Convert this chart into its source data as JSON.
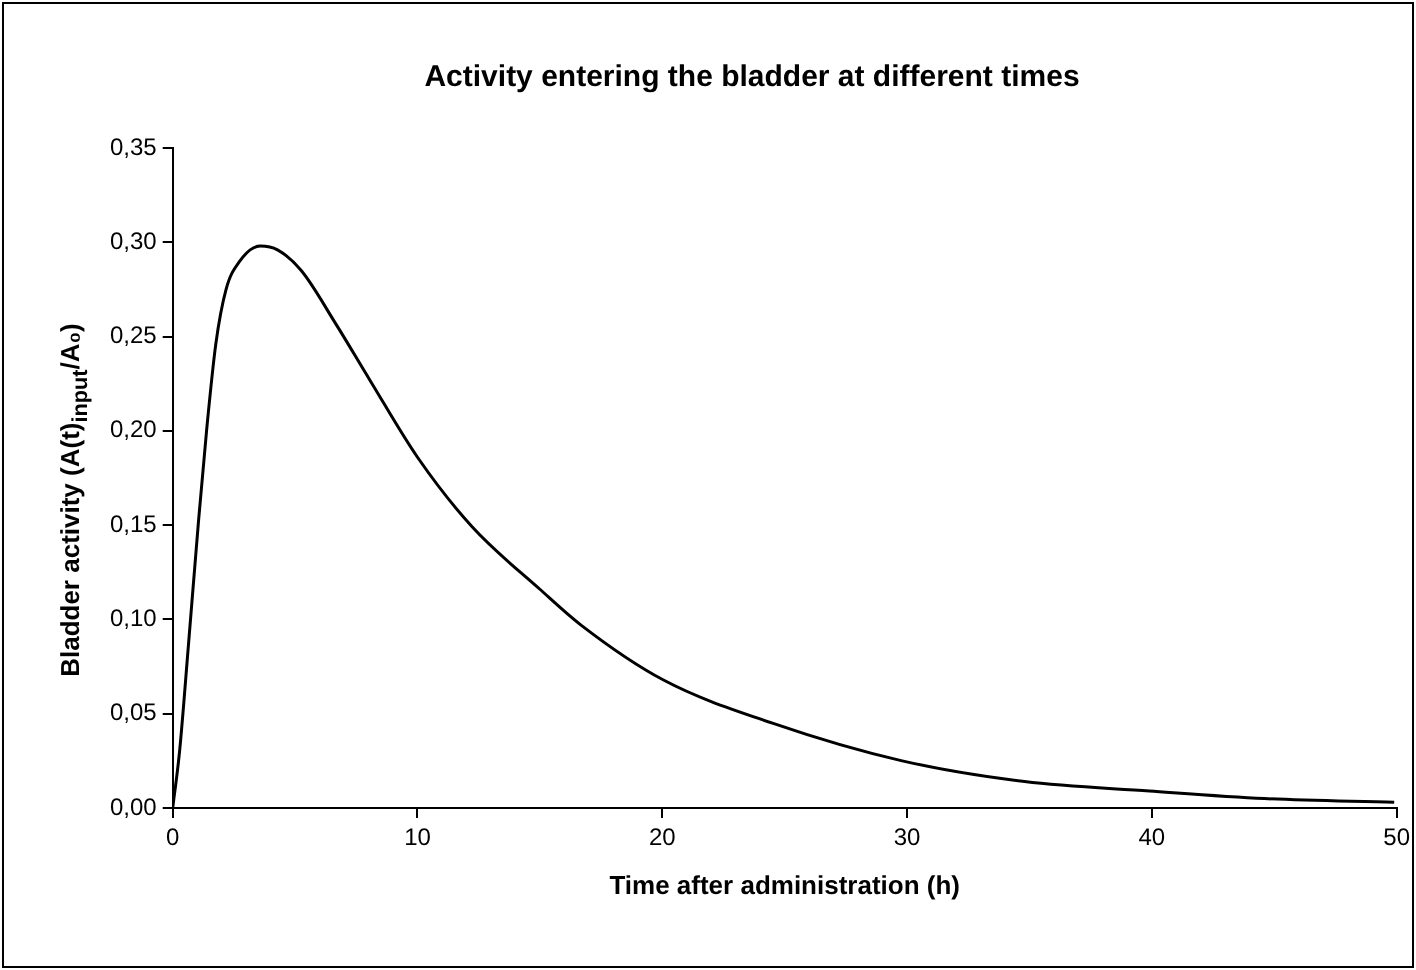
{
  "chart_data": {
    "type": "line",
    "title": "Activity entering the bladder at different times",
    "xlabel": "Time after administration (h)",
    "ylabel": "Bladder activity (A(t)$_{input}$/A₀)",
    "series": [
      {
        "color": "#000000",
        "x": [
          0,
          0.28,
          0.64,
          1.06,
          1.39,
          1.76,
          2.18,
          2.74,
          3.58,
          4.28,
          5.25,
          6.65,
          8.05,
          10,
          12.24,
          15,
          16.68,
          20.03,
          24.5,
          29.8,
          34.8,
          39.9,
          44.6,
          49.9
        ],
        "values": [
          0,
          0.03,
          0.086,
          0.153,
          0.201,
          0.246,
          0.275,
          0.29,
          0.298,
          0.296,
          0.285,
          0.257,
          0.227,
          0.186,
          0.149,
          0.116,
          0.097,
          0.068,
          0.045,
          0.025,
          0.014,
          0.009,
          0.005,
          0.003
        ]
      }
    ],
    "xlim": [
      0,
      50
    ],
    "xticks": [
      0,
      10,
      20,
      30,
      40,
      50
    ],
    "ylim": [
      0,
      0.35
    ],
    "yticks": [
      {
        "value": 0,
        "label": "0,00"
      },
      {
        "value": 0.05,
        "label": "0,05"
      },
      {
        "value": 0.1,
        "label": "0,10"
      },
      {
        "value": 0.15,
        "label": "0,15"
      },
      {
        "value": 0.2,
        "label": "0,20"
      },
      {
        "value": 0.25,
        "label": "0,25"
      },
      {
        "value": 0.3,
        "label": "0,30"
      },
      {
        "value": 0.35,
        "label": "0,35"
      }
    ],
    "grid": false,
    "legend": false,
    "marker": "none",
    "line_style": "solid"
  }
}
